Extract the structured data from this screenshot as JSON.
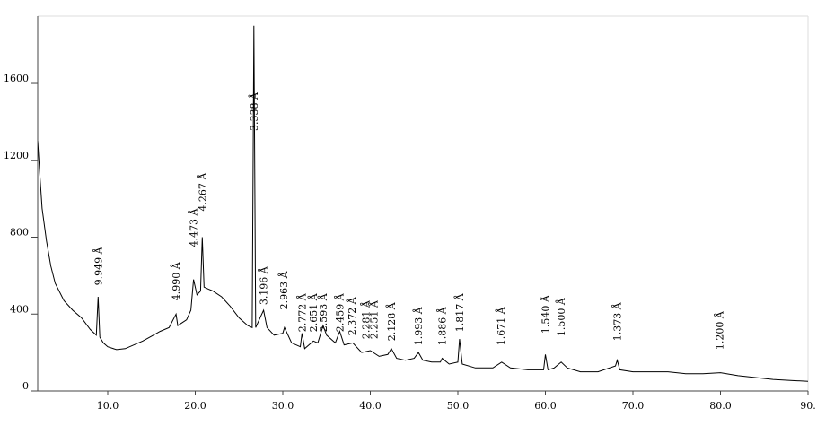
{
  "chart_data": {
    "type": "line",
    "x": [
      2.0,
      2.2,
      2.5,
      3,
      3.5,
      4,
      5,
      6,
      7,
      8,
      8.7,
      8.9,
      9.1,
      9.5,
      10,
      11,
      12,
      13,
      14,
      15,
      16,
      17,
      17.8,
      18,
      19,
      19.5,
      19.8,
      20.2,
      20.6,
      20.8,
      21,
      21.5,
      22,
      23,
      24,
      25,
      26,
      26.5,
      26.7,
      26.9,
      27.5,
      27.8,
      28.2,
      29,
      30,
      30.2,
      31,
      32,
      32.2,
      32.5,
      33.5,
      34,
      34.6,
      35,
      36,
      36.5,
      37,
      38,
      39,
      40,
      41,
      42,
      42.4,
      43,
      44,
      45,
      45.5,
      46,
      47,
      48,
      48.2,
      49,
      50,
      50.2,
      50.5,
      52,
      54,
      55,
      56,
      58,
      59.8,
      60,
      60.3,
      61,
      61.8,
      62.5,
      64,
      66,
      68,
      68.2,
      68.5,
      70,
      72,
      74,
      76,
      78,
      80,
      82,
      84,
      86,
      88,
      90
    ],
    "series": [
      {
        "color": "#000000",
        "values": [
          1300,
          1150,
          950,
          780,
          650,
          560,
          470,
          420,
          380,
          320,
          290,
          490,
          280,
          250,
          230,
          215,
          220,
          240,
          260,
          285,
          310,
          330,
          400,
          340,
          370,
          420,
          580,
          500,
          520,
          800,
          540,
          530,
          520,
          490,
          440,
          380,
          340,
          330,
          1900,
          330,
          390,
          420,
          330,
          290,
          300,
          330,
          250,
          230,
          300,
          220,
          260,
          250,
          340,
          290,
          250,
          310,
          240,
          250,
          200,
          210,
          180,
          190,
          220,
          170,
          160,
          170,
          200,
          160,
          150,
          150,
          170,
          140,
          150,
          270,
          140,
          120,
          120,
          150,
          120,
          110,
          110,
          190,
          110,
          120,
          150,
          120,
          100,
          100,
          130,
          160,
          110,
          100,
          100,
          100,
          90,
          90,
          95,
          80,
          70,
          60,
          55,
          50
        ]
      }
    ],
    "xlim": [
      2,
      90
    ],
    "ylim": [
      0,
      1950
    ],
    "xticks": [
      {
        "value": 10,
        "label": "10.0"
      },
      {
        "value": 20,
        "label": "20.0"
      },
      {
        "value": 30,
        "label": "30.0"
      },
      {
        "value": 40,
        "label": "40.0"
      },
      {
        "value": 50,
        "label": "50.0"
      },
      {
        "value": 60,
        "label": "60.0"
      },
      {
        "value": 70,
        "label": "70.0"
      },
      {
        "value": 80,
        "label": "80.0"
      },
      {
        "value": 90,
        "label": "90."
      }
    ],
    "yticks": [
      0,
      400,
      800,
      1200,
      1600
    ],
    "annotations": [
      {
        "text": "9.949 Å",
        "x": 8.9,
        "y": 549
      },
      {
        "text": "4.990 Å",
        "x": 17.8,
        "y": 470
      },
      {
        "text": "4.473 Å",
        "x": 19.8,
        "y": 749
      },
      {
        "text": "4.267 Å",
        "x": 20.8,
        "y": 935
      },
      {
        "text": "3.338 Å",
        "x": 26.7,
        "y": 1353
      },
      {
        "text": "3.196 Å",
        "x": 27.8,
        "y": 447
      },
      {
        "text": "2.963 Å",
        "x": 30.1,
        "y": 423
      },
      {
        "text": "2.772 Å",
        "x": 32.2,
        "y": 307
      },
      {
        "text": "2.651 Å",
        "x": 33.5,
        "y": 307
      },
      {
        "text": "2.593 Å",
        "x": 34.6,
        "y": 307
      },
      {
        "text": "2.459 Å",
        "x": 36.5,
        "y": 307
      },
      {
        "text": "2.372 Å",
        "x": 37.9,
        "y": 288
      },
      {
        "text": "2.281 Å",
        "x": 39.5,
        "y": 270
      },
      {
        "text": "2.251 Å",
        "x": 40.4,
        "y": 270
      },
      {
        "text": "2.128 Å",
        "x": 42.4,
        "y": 260
      },
      {
        "text": "1.993 Å",
        "x": 45.5,
        "y": 237
      },
      {
        "text": "1.886 Å",
        "x": 48.2,
        "y": 237
      },
      {
        "text": "1.817 Å",
        "x": 50.2,
        "y": 307
      },
      {
        "text": "1.671 Å",
        "x": 54.9,
        "y": 237
      },
      {
        "text": "1.540 Å",
        "x": 60.0,
        "y": 298
      },
      {
        "text": "1.500 Å",
        "x": 61.8,
        "y": 284
      },
      {
        "text": "1.373 Å",
        "x": 68.2,
        "y": 260
      },
      {
        "text": "1.200 Å",
        "x": 79.9,
        "y": 214
      }
    ]
  }
}
